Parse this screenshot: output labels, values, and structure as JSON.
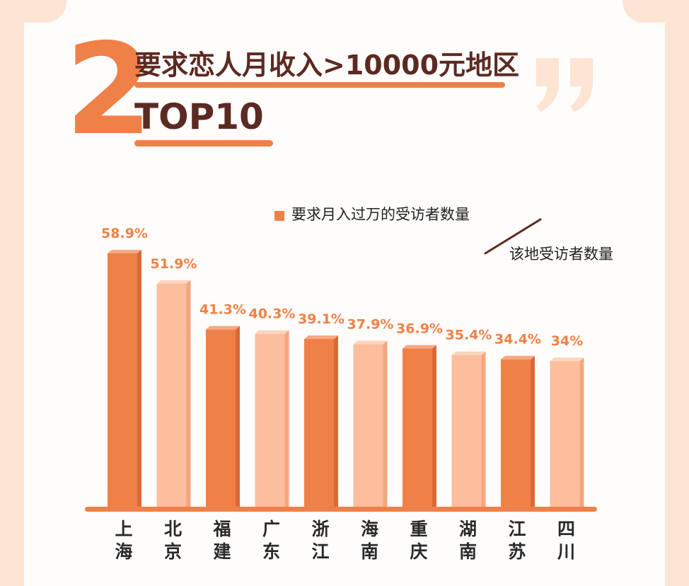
{
  "header": {
    "number": "2",
    "title_line1": "要求恋人月收入>10000元地区",
    "title_line2": "TOP10",
    "quote_icon": "quote-mark-icon"
  },
  "legend": {
    "entry1": "要求月入过万的受访者数量",
    "entry2": "该地受访者数量"
  },
  "colors": {
    "accent": "#ef8148",
    "bar_dark": "#ef8148",
    "bar_light": "#fcbe9c",
    "label": "#ef8148",
    "title": "#5b2a22",
    "background": "#fde4d3"
  },
  "chart_data": {
    "type": "bar",
    "categories": [
      "上海",
      "北京",
      "福建",
      "广东",
      "浙江",
      "海南",
      "重庆",
      "湖南",
      "江苏",
      "四川"
    ],
    "values": [
      58.9,
      51.9,
      41.3,
      40.3,
      39.1,
      37.9,
      36.9,
      35.4,
      34.4,
      34
    ],
    "value_labels": [
      "58.9%",
      "51.9%",
      "41.3%",
      "40.3%",
      "39.1%",
      "37.9%",
      "36.9%",
      "35.4%",
      "34.4%",
      "34%"
    ],
    "title": "要求恋人月收入>10000元地区 TOP10",
    "xlabel": "",
    "ylabel": "",
    "ylim": [
      0,
      60
    ],
    "grid": false,
    "legend_position": "top-right"
  }
}
